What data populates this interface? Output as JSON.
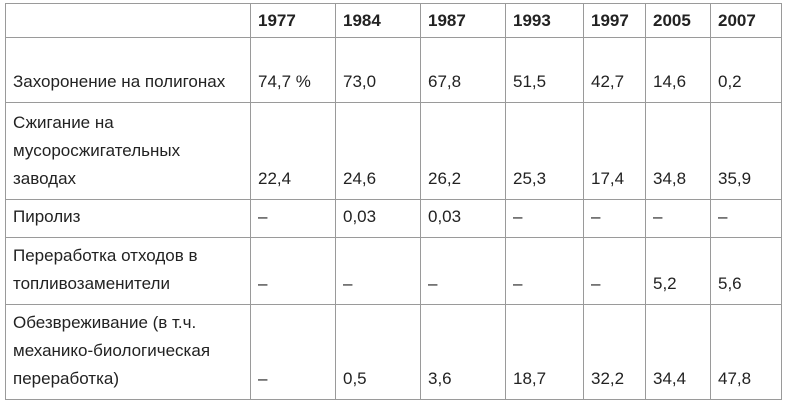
{
  "table": {
    "header": [
      "1977",
      "1984",
      "1987",
      "1993",
      "1997",
      "2005",
      "2007"
    ],
    "rows": [
      [
        "Захоронение на полигонах",
        "74,7 %",
        "73,0",
        "67,8",
        "51,5",
        "42,7",
        "14,6",
        "0,2"
      ],
      [
        "Сжигание на мусоросжигательных заводах",
        "22,4",
        "24,6",
        "26,2",
        "25,3",
        "17,4",
        "34,8",
        "35,9"
      ],
      [
        "Пиролиз",
        "–",
        "0,03",
        "0,03",
        "–",
        "–",
        "–",
        "–"
      ],
      [
        "Переработка отходов в топливозаменители",
        "–",
        "–",
        "–",
        "–",
        "–",
        "5,2",
        "5,6"
      ],
      [
        "Обезвреживание (в т.ч. механико-биологическая переработка)",
        "–",
        "0,5",
        "3,6",
        "18,7",
        "32,2",
        "34,4",
        "47,8"
      ]
    ]
  }
}
